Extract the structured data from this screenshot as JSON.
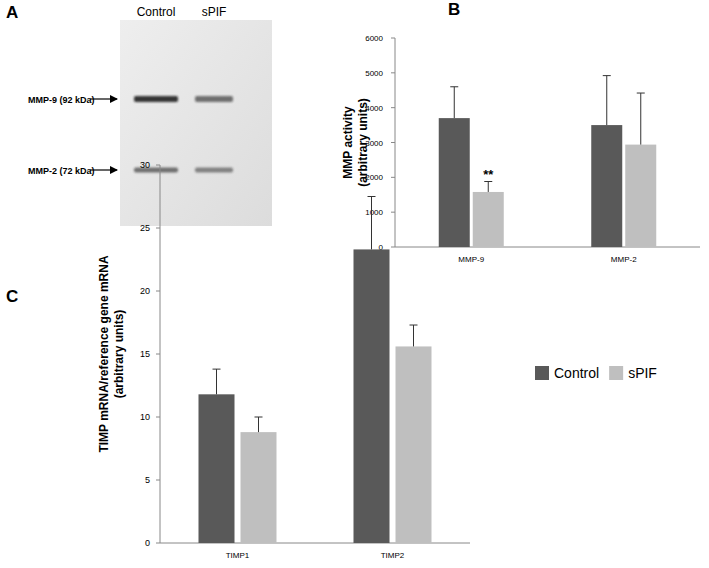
{
  "blot": {
    "title": "A",
    "lanes": [
      "Control",
      "sPIF"
    ],
    "bands": [
      "MMP-9 (92 kDa)",
      "MMP-2 (72 kDa)"
    ]
  },
  "chart_data": [
    {
      "type": "bar",
      "title": "B",
      "y_label": [
        "MMP activity",
        "(arbitrary units)"
      ],
      "categories": [
        "MMP-9",
        "MMP-2"
      ],
      "series": [
        {
          "name": "Control",
          "color": "#595959",
          "values": [
            3700,
            3500
          ],
          "errors": [
            900,
            1420
          ]
        },
        {
          "name": "sPIF",
          "color": "#bfbfbf",
          "values": [
            1580,
            2940
          ],
          "errors": [
            300,
            1480
          ]
        }
      ],
      "ylim": [
        0,
        6000
      ],
      "yticks": [
        0,
        1000,
        2000,
        3000,
        4000,
        5000,
        6000
      ],
      "grid": false,
      "annotations": [
        {
          "text": "**",
          "category": "MMP-9",
          "series": "sPIF"
        }
      ]
    },
    {
      "type": "bar",
      "title": "C",
      "y_label": [
        "TIMP mRNA/reference gene mRNA",
        "(arbitrary units)"
      ],
      "categories": [
        "TIMP1",
        "TIMP2"
      ],
      "series": [
        {
          "name": "Control",
          "color": "#595959",
          "values": [
            11.8,
            23.3
          ],
          "errors": [
            2.0,
            4.2
          ]
        },
        {
          "name": "sPIF",
          "color": "#bfbfbf",
          "values": [
            8.8,
            15.6
          ],
          "errors": [
            1.2,
            1.7
          ]
        }
      ],
      "ylim": [
        0,
        30
      ],
      "yticks": [
        0,
        5,
        10,
        15,
        20,
        25,
        30
      ],
      "grid": false,
      "legend": "right"
    }
  ]
}
